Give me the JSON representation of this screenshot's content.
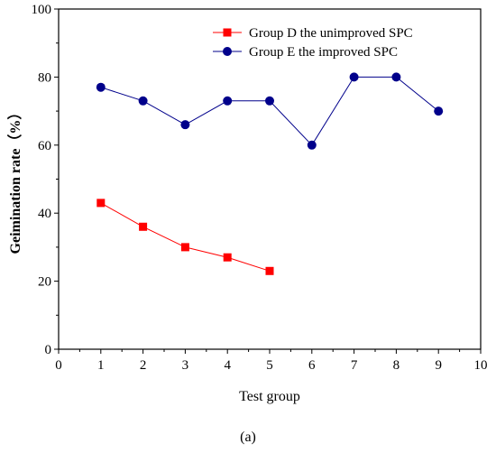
{
  "chart_data": {
    "type": "line",
    "xlabel": "Test group",
    "ylabel": "Geimination rate（%）",
    "xlim": [
      0,
      10
    ],
    "ylim": [
      0,
      100
    ],
    "x_ticks": [
      0,
      1,
      2,
      3,
      4,
      5,
      6,
      7,
      8,
      9,
      10
    ],
    "y_ticks": [
      0,
      20,
      40,
      60,
      80,
      100
    ],
    "grid": false,
    "legend_position": "top-right",
    "series": [
      {
        "name": "Group D  the unimproved SPC",
        "color": "#ff0000",
        "marker": "square",
        "x": [
          1,
          2,
          3,
          4,
          5
        ],
        "y": [
          43,
          36,
          30,
          27,
          23
        ]
      },
      {
        "name": "Group E  the improved SPC",
        "color": "#00008b",
        "marker": "circle",
        "x": [
          1,
          2,
          3,
          4,
          5,
          6,
          7,
          8,
          9
        ],
        "y": [
          77,
          73,
          66,
          73,
          73,
          60,
          80,
          80,
          70
        ]
      }
    ]
  },
  "caption": "(a)"
}
